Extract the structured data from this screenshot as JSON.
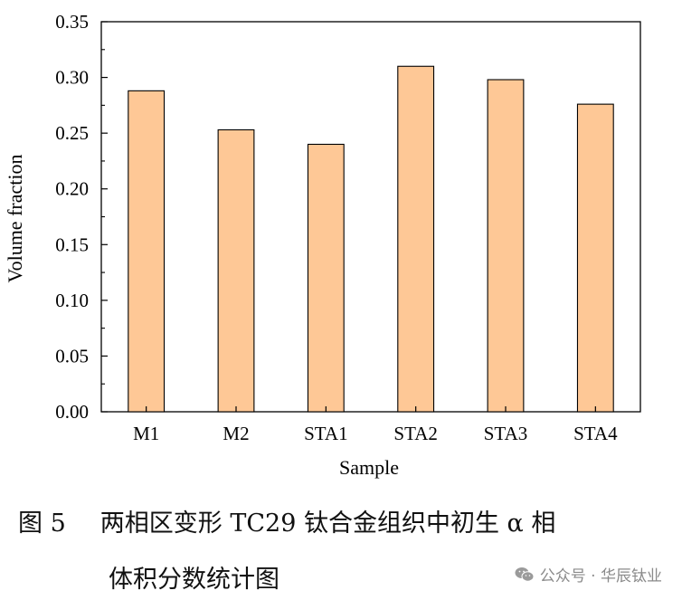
{
  "chart_data": {
    "type": "bar",
    "categories": [
      "M1",
      "M2",
      "STA1",
      "STA2",
      "STA3",
      "STA4"
    ],
    "values": [
      0.288,
      0.253,
      0.24,
      0.31,
      0.298,
      0.276
    ],
    "xlabel": "Sample",
    "ylabel": "Volume fraction",
    "ylim": [
      0,
      0.35
    ],
    "yticks": [
      "0.00",
      "0.05",
      "0.10",
      "0.15",
      "0.20",
      "0.25",
      "0.30",
      "0.35"
    ],
    "bar_color": "#FEC896",
    "bar_edge_color": "#000000",
    "grid": false
  },
  "caption": {
    "figure_number": "图 5",
    "line1": "两相区变形 TC29 钛合金组织中初生 α 相",
    "line2": "体积分数统计图"
  },
  "watermark": {
    "text": "公众号 · 华辰钛业",
    "icon": "wechat-icon"
  }
}
